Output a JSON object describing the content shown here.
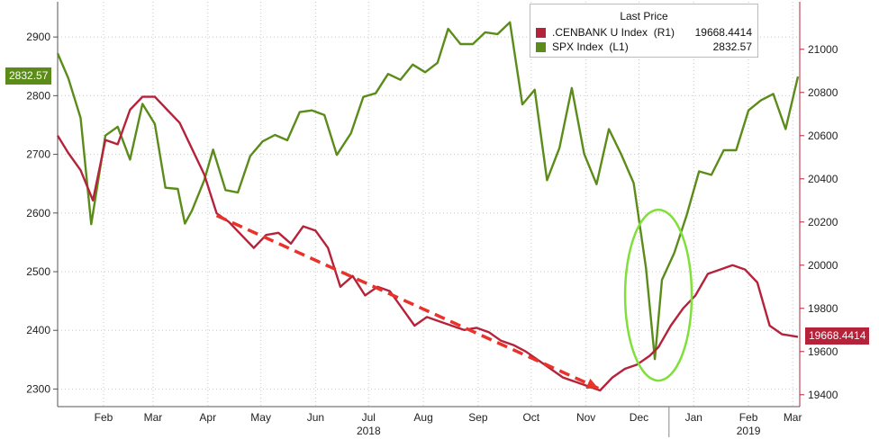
{
  "chart_data": {
    "type": "line",
    "title": "",
    "x_start": "2018-01-20",
    "x_end": "2019-03-16",
    "x_ticks": [
      {
        "label": "Feb",
        "date": "2018-02-15"
      },
      {
        "label": "Mar",
        "date": "2018-03-15"
      },
      {
        "label": "Apr",
        "date": "2018-04-15"
      },
      {
        "label": "May",
        "date": "2018-05-15"
      },
      {
        "label": "Jun",
        "date": "2018-06-15"
      },
      {
        "label": "Jul",
        "date": "2018-07-15"
      },
      {
        "label": "Aug",
        "date": "2018-08-15"
      },
      {
        "label": "Sep",
        "date": "2018-09-15"
      },
      {
        "label": "Oct",
        "date": "2018-10-15"
      },
      {
        "label": "Nov",
        "date": "2018-11-15"
      },
      {
        "label": "Dec",
        "date": "2018-12-15"
      },
      {
        "label": "Jan",
        "date": "2019-01-15"
      },
      {
        "label": "Feb",
        "date": "2019-02-15"
      },
      {
        "label": "Mar",
        "date": "2019-03-12"
      }
    ],
    "year_labels": [
      {
        "label": "2018",
        "date": "2018-07-15"
      },
      {
        "label": "2019",
        "date": "2019-02-15"
      }
    ],
    "left_axis": {
      "min": 2270,
      "max": 2960,
      "ticks": [
        2300,
        2400,
        2500,
        2600,
        2700,
        2800,
        2900
      ]
    },
    "right_axis": {
      "min": 19345,
      "max": 21220,
      "ticks": [
        19400,
        19600,
        19800,
        20000,
        20200,
        20400,
        20600,
        20800,
        21000
      ]
    },
    "legend": {
      "title": "Last Price",
      "placement": "top-right",
      "entries": [
        {
          "name": ".CENBANK U Index  (R1)",
          "value": "19668.4414",
          "color": "#b5233a"
        },
        {
          "name": "SPX Index  (L1)",
          "value": "2832.57",
          "color": "#5b8c1a"
        }
      ]
    },
    "series": [
      {
        "name": "SPX Index",
        "axis": "left",
        "color": "#5b8c1a",
        "last_label": "2832.57",
        "points": [
          [
            "2018-01-20",
            2872
          ],
          [
            "2018-01-26",
            2830
          ],
          [
            "2018-02-02",
            2762
          ],
          [
            "2018-02-08",
            2581
          ],
          [
            "2018-02-16",
            2732
          ],
          [
            "2018-02-23",
            2747
          ],
          [
            "2018-03-02",
            2691
          ],
          [
            "2018-03-09",
            2786
          ],
          [
            "2018-03-16",
            2752
          ],
          [
            "2018-03-22",
            2643
          ],
          [
            "2018-03-29",
            2641
          ],
          [
            "2018-04-02",
            2582
          ],
          [
            "2018-04-06",
            2604
          ],
          [
            "2018-04-13",
            2656
          ],
          [
            "2018-04-18",
            2708
          ],
          [
            "2018-04-25",
            2639
          ],
          [
            "2018-05-02",
            2635
          ],
          [
            "2018-05-09",
            2697
          ],
          [
            "2018-05-16",
            2722
          ],
          [
            "2018-05-23",
            2733
          ],
          [
            "2018-05-30",
            2724
          ],
          [
            "2018-06-06",
            2772
          ],
          [
            "2018-06-13",
            2775
          ],
          [
            "2018-06-20",
            2767
          ],
          [
            "2018-06-27",
            2699
          ],
          [
            "2018-07-05",
            2736
          ],
          [
            "2018-07-12",
            2798
          ],
          [
            "2018-07-19",
            2804
          ],
          [
            "2018-07-26",
            2837
          ],
          [
            "2018-08-02",
            2827
          ],
          [
            "2018-08-09",
            2853
          ],
          [
            "2018-08-16",
            2840
          ],
          [
            "2018-08-23",
            2856
          ],
          [
            "2018-08-29",
            2914
          ],
          [
            "2018-09-05",
            2888
          ],
          [
            "2018-09-12",
            2888
          ],
          [
            "2018-09-19",
            2908
          ],
          [
            "2018-09-26",
            2905
          ],
          [
            "2018-10-03",
            2925
          ],
          [
            "2018-10-10",
            2785
          ],
          [
            "2018-10-17",
            2810
          ],
          [
            "2018-10-24",
            2656
          ],
          [
            "2018-10-31",
            2711
          ],
          [
            "2018-11-07",
            2813
          ],
          [
            "2018-11-14",
            2701
          ],
          [
            "2018-11-21",
            2649
          ],
          [
            "2018-11-28",
            2743
          ],
          [
            "2018-12-05",
            2700
          ],
          [
            "2018-12-12",
            2651
          ],
          [
            "2018-12-19",
            2506
          ],
          [
            "2018-12-24",
            2351
          ],
          [
            "2018-12-28",
            2486
          ],
          [
            "2019-01-04",
            2532
          ],
          [
            "2019-01-11",
            2596
          ],
          [
            "2019-01-18",
            2671
          ],
          [
            "2019-01-25",
            2665
          ],
          [
            "2019-02-01",
            2707
          ],
          [
            "2019-02-08",
            2707
          ],
          [
            "2019-02-15",
            2775
          ],
          [
            "2019-02-22",
            2792
          ],
          [
            "2019-03-01",
            2803
          ],
          [
            "2019-03-08",
            2743
          ],
          [
            "2019-03-15",
            2832.57
          ]
        ]
      },
      {
        "name": ".CENBANK U Index",
        "axis": "right",
        "color": "#b5233a",
        "last_label": "19668.4414",
        "points": [
          [
            "2018-01-20",
            20600
          ],
          [
            "2018-01-26",
            20520
          ],
          [
            "2018-02-02",
            20440
          ],
          [
            "2018-02-09",
            20300
          ],
          [
            "2018-02-16",
            20580
          ],
          [
            "2018-02-23",
            20560
          ],
          [
            "2018-03-02",
            20720
          ],
          [
            "2018-03-09",
            20780
          ],
          [
            "2018-03-16",
            20780
          ],
          [
            "2018-03-23",
            20720
          ],
          [
            "2018-03-30",
            20660
          ],
          [
            "2018-04-06",
            20540
          ],
          [
            "2018-04-13",
            20420
          ],
          [
            "2018-04-20",
            20240
          ],
          [
            "2018-04-27",
            20200
          ],
          [
            "2018-05-04",
            20140
          ],
          [
            "2018-05-11",
            20080
          ],
          [
            "2018-05-18",
            20140
          ],
          [
            "2018-05-25",
            20150
          ],
          [
            "2018-06-01",
            20100
          ],
          [
            "2018-06-08",
            20180
          ],
          [
            "2018-06-15",
            20160
          ],
          [
            "2018-06-22",
            20080
          ],
          [
            "2018-06-29",
            19900
          ],
          [
            "2018-07-06",
            19950
          ],
          [
            "2018-07-13",
            19860
          ],
          [
            "2018-07-20",
            19900
          ],
          [
            "2018-07-27",
            19880
          ],
          [
            "2018-08-03",
            19800
          ],
          [
            "2018-08-10",
            19720
          ],
          [
            "2018-08-17",
            19760
          ],
          [
            "2018-08-24",
            19740
          ],
          [
            "2018-08-31",
            19720
          ],
          [
            "2018-09-07",
            19700
          ],
          [
            "2018-09-14",
            19710
          ],
          [
            "2018-09-21",
            19690
          ],
          [
            "2018-09-28",
            19650
          ],
          [
            "2018-10-05",
            19630
          ],
          [
            "2018-10-12",
            19600
          ],
          [
            "2018-10-19",
            19560
          ],
          [
            "2018-10-26",
            19520
          ],
          [
            "2018-11-02",
            19480
          ],
          [
            "2018-11-09",
            19460
          ],
          [
            "2018-11-16",
            19440
          ],
          [
            "2018-11-23",
            19420
          ],
          [
            "2018-11-30",
            19480
          ],
          [
            "2018-12-07",
            19520
          ],
          [
            "2018-12-14",
            19540
          ],
          [
            "2018-12-21",
            19580
          ],
          [
            "2018-12-26",
            19620
          ],
          [
            "2019-01-02",
            19720
          ],
          [
            "2019-01-09",
            19800
          ],
          [
            "2019-01-16",
            19860
          ],
          [
            "2019-01-23",
            19960
          ],
          [
            "2019-01-30",
            19980
          ],
          [
            "2019-02-06",
            20000
          ],
          [
            "2019-02-13",
            19980
          ],
          [
            "2019-02-20",
            19920
          ],
          [
            "2019-02-27",
            19720
          ],
          [
            "2019-03-06",
            19680
          ],
          [
            "2019-03-15",
            19668.4414
          ]
        ]
      }
    ]
  }
}
